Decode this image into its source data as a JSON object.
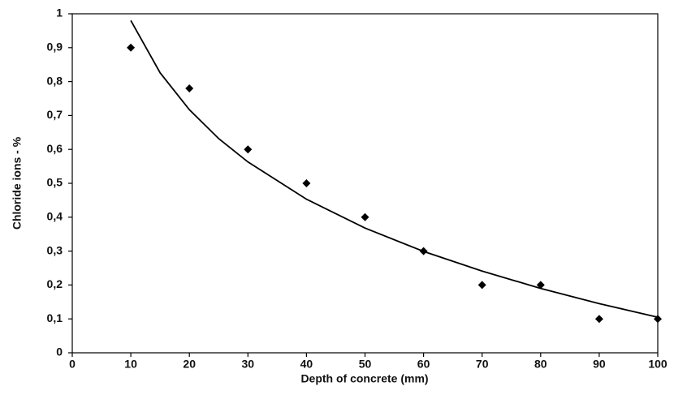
{
  "chart_data": {
    "type": "scatter",
    "x_label": "Depth of concrete (mm)",
    "y_label": "Chloride ions - %",
    "xlim": [
      0,
      100
    ],
    "ylim": [
      0,
      1
    ],
    "xticks": [
      0,
      10,
      20,
      30,
      40,
      50,
      60,
      70,
      80,
      90,
      100
    ],
    "yticks": [
      0,
      {
        "value": 0.1,
        "label": "0,1"
      },
      {
        "value": 0.2,
        "label": "0,2"
      },
      {
        "value": 0.3,
        "label": "0,3"
      },
      {
        "value": 0.4,
        "label": "0,4"
      },
      {
        "value": 0.5,
        "label": "0,5"
      },
      {
        "value": 0.6,
        "label": "0,6"
      },
      {
        "value": 0.7,
        "label": "0,7"
      },
      {
        "value": 0.8,
        "label": "0,8"
      },
      {
        "value": 0.9,
        "label": "0,9"
      },
      1
    ],
    "grid": false,
    "series": [
      {
        "style": "markers",
        "marker": "diamond",
        "color": "#000000",
        "x": [
          10,
          20,
          30,
          40,
          50,
          60,
          70,
          80,
          90,
          100
        ],
        "values": [
          0.9,
          0.78,
          0.6,
          0.5,
          0.4,
          0.3,
          0.2,
          0.2,
          0.1,
          0.1
        ]
      },
      {
        "style": "line",
        "color": "#000000",
        "x": [
          10,
          15,
          20,
          25,
          30,
          40,
          50,
          60,
          70,
          80,
          90,
          100
        ],
        "values": [
          0.98,
          0.826,
          0.717,
          0.632,
          0.563,
          0.453,
          0.368,
          0.299,
          0.241,
          0.19,
          0.145,
          0.105
        ]
      }
    ]
  }
}
